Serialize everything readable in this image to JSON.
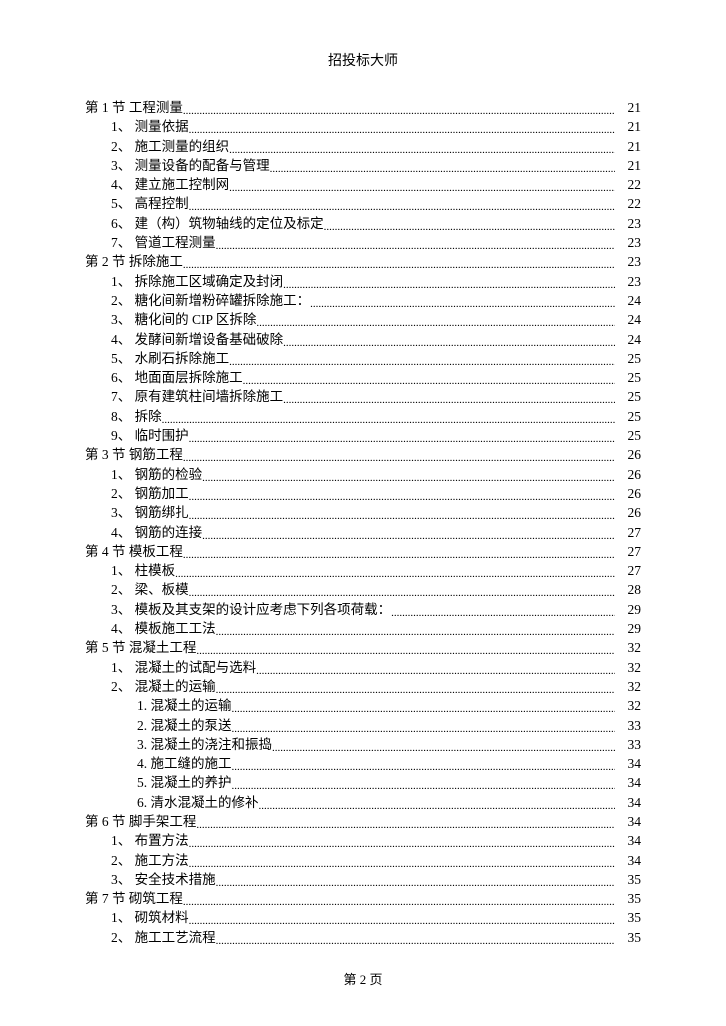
{
  "header": "招投标大师",
  "footer": "第 2 页",
  "dots": "..............................................................................................................................................................................................",
  "toc": [
    {
      "indent": 0,
      "label": "第 1 节  工程测量",
      "page": "21"
    },
    {
      "indent": 1,
      "label": "1、 测量依据",
      "page": "21"
    },
    {
      "indent": 1,
      "label": "2、 施工测量的组织",
      "page": "21"
    },
    {
      "indent": 1,
      "label": "3、 测量设备的配备与管理",
      "page": "21"
    },
    {
      "indent": 1,
      "label": "4、 建立施工控制网",
      "page": "22"
    },
    {
      "indent": 1,
      "label": "5、 高程控制",
      "page": "22"
    },
    {
      "indent": 1,
      "label": "6、 建（构）筑物轴线的定位及标定",
      "page": "23"
    },
    {
      "indent": 1,
      "label": "7、 管道工程测量",
      "page": "23"
    },
    {
      "indent": 0,
      "label": "第 2 节  拆除施工",
      "page": "23"
    },
    {
      "indent": 1,
      "label": "1、 拆除施工区域确定及封闭",
      "page": "23"
    },
    {
      "indent": 1,
      "label": "2、 糖化间新增粉碎罐拆除施工：",
      "page": "24"
    },
    {
      "indent": 1,
      "label": "3、 糖化间的 CIP 区拆除",
      "page": "24"
    },
    {
      "indent": 1,
      "label": "4、 发酵间新增设备基础破除",
      "page": "24"
    },
    {
      "indent": 1,
      "label": "5、 水刷石拆除施工",
      "page": "25"
    },
    {
      "indent": 1,
      "label": "6、 地面面层拆除施工",
      "page": "25"
    },
    {
      "indent": 1,
      "label": "7、 原有建筑柱间墙拆除施工",
      "page": "25"
    },
    {
      "indent": 1,
      "label": "8、 拆除",
      "page": "25"
    },
    {
      "indent": 1,
      "label": "9、 临时围护",
      "page": "25"
    },
    {
      "indent": 0,
      "label": "第 3 节  钢筋工程",
      "page": "26"
    },
    {
      "indent": 1,
      "label": "1、 钢筋的检验",
      "page": "26"
    },
    {
      "indent": 1,
      "label": "2、 钢筋加工",
      "page": "26"
    },
    {
      "indent": 1,
      "label": "3、 钢筋绑扎",
      "page": "26"
    },
    {
      "indent": 1,
      "label": "4、 钢筋的连接",
      "page": "27"
    },
    {
      "indent": 0,
      "label": "第 4 节  模板工程",
      "page": "27"
    },
    {
      "indent": 1,
      "label": "1、 柱模板",
      "page": "27"
    },
    {
      "indent": 1,
      "label": "2、 梁、板模",
      "page": "28"
    },
    {
      "indent": 1,
      "label": "3、 模板及其支架的设计应考虑下列各项荷载：",
      "page": "29"
    },
    {
      "indent": 1,
      "label": "4、 模板施工工法",
      "page": "29"
    },
    {
      "indent": 0,
      "label": "第 5 节  混凝土工程",
      "page": "32"
    },
    {
      "indent": 1,
      "label": "1、 混凝土的试配与选料",
      "page": "32"
    },
    {
      "indent": 1,
      "label": "2、 混凝土的运输",
      "page": "32"
    },
    {
      "indent": 2,
      "label": "1. 混凝土的运输",
      "page": "32"
    },
    {
      "indent": 2,
      "label": "2. 混凝土的泵送",
      "page": "33"
    },
    {
      "indent": 2,
      "label": "3. 混凝土的浇注和振捣",
      "page": "33"
    },
    {
      "indent": 2,
      "label": "4. 施工缝的施工",
      "page": "34"
    },
    {
      "indent": 2,
      "label": "5. 混凝土的养护",
      "page": "34"
    },
    {
      "indent": 2,
      "label": "6. 清水混凝土的修补",
      "page": "34"
    },
    {
      "indent": 0,
      "label": "第 6 节  脚手架工程",
      "page": "34"
    },
    {
      "indent": 1,
      "label": "1、 布置方法",
      "page": "34"
    },
    {
      "indent": 1,
      "label": "2、 施工方法",
      "page": "34"
    },
    {
      "indent": 1,
      "label": "3、 安全技术措施",
      "page": "35"
    },
    {
      "indent": 0,
      "label": "第 7 节  砌筑工程",
      "page": "35"
    },
    {
      "indent": 1,
      "label": "1、 砌筑材料",
      "page": "35"
    },
    {
      "indent": 1,
      "label": "2、 施工工艺流程",
      "page": "35"
    }
  ]
}
